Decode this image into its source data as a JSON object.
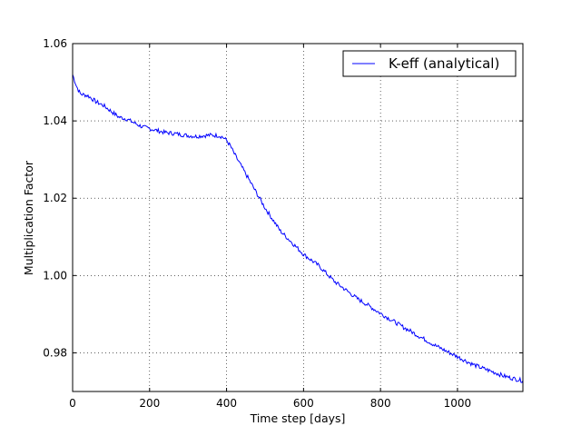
{
  "chart_data": {
    "type": "line",
    "title": "",
    "xlabel": "Time step [days]",
    "ylabel": "Multiplication Factor",
    "xlim": [
      0,
      1170
    ],
    "ylim": [
      0.97,
      1.06
    ],
    "xticks": [
      0,
      200,
      400,
      600,
      800,
      1000
    ],
    "yticks": [
      0.98,
      1.0,
      1.02,
      1.04,
      1.06
    ],
    "xtick_labels": [
      "0",
      "200",
      "400",
      "600",
      "800",
      "1000"
    ],
    "ytick_labels": [
      "0.98",
      "1.00",
      "1.02",
      "1.04",
      "1.06"
    ],
    "grid": true,
    "legend_position": "top-right",
    "series": [
      {
        "name": "K-eff (analytical)",
        "color": "#0000ff",
        "x": [
          0,
          10,
          20,
          40,
          60,
          80,
          100,
          120,
          140,
          160,
          180,
          200,
          220,
          240,
          260,
          280,
          300,
          320,
          340,
          360,
          380,
          390,
          400,
          410,
          420,
          440,
          460,
          480,
          500,
          520,
          540,
          560,
          580,
          600,
          620,
          640,
          660,
          680,
          700,
          720,
          740,
          760,
          780,
          800,
          820,
          840,
          860,
          880,
          900,
          920,
          940,
          960,
          980,
          1000,
          1020,
          1040,
          1060,
          1080,
          1100,
          1120,
          1140,
          1160,
          1170
        ],
        "y": [
          1.052,
          1.049,
          1.047,
          1.0465,
          1.045,
          1.044,
          1.0425,
          1.041,
          1.0405,
          1.0395,
          1.0385,
          1.038,
          1.0375,
          1.037,
          1.0368,
          1.0365,
          1.0362,
          1.036,
          1.0362,
          1.0363,
          1.0362,
          1.0358,
          1.035,
          1.0335,
          1.0315,
          1.028,
          1.0245,
          1.021,
          1.0175,
          1.0145,
          1.0115,
          1.0095,
          1.0075,
          1.0055,
          1.004,
          1.0025,
          1.0005,
          0.9985,
          0.997,
          0.9955,
          0.994,
          0.9928,
          0.9915,
          0.9902,
          0.989,
          0.9878,
          0.9866,
          0.9855,
          0.9843,
          0.9832,
          0.982,
          0.981,
          0.98,
          0.979,
          0.978,
          0.977,
          0.9762,
          0.9755,
          0.9748,
          0.974,
          0.9735,
          0.973,
          0.9728
        ]
      }
    ]
  }
}
